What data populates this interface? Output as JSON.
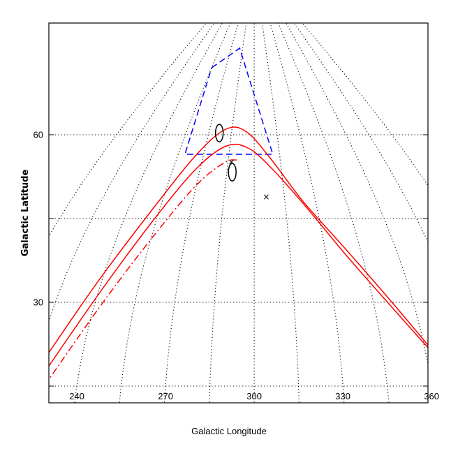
{
  "chart_data": {
    "type": "line",
    "title": "",
    "xlabel": "Galactic Longitude",
    "ylabel": "Galactic Latitude",
    "x_ticks": [
      "240",
      "270",
      "300",
      "330",
      "360"
    ],
    "y_ticks": [
      "60",
      "30"
    ],
    "ylim": [
      12,
      80
    ],
    "grid": true,
    "grid_style": "dotted, curved longitude meridians and straight latitude parallels",
    "parallels": [
      15,
      45
    ],
    "meridians": [
      210,
      225,
      240,
      255,
      270,
      285,
      300,
      315,
      330,
      345,
      360,
      375,
      390
    ],
    "series": [
      {
        "style": "solid",
        "color": "#ff0000",
        "points": [
          [
            221,
            13
          ],
          [
            238,
            33
          ],
          [
            252,
            47
          ],
          [
            266,
            56.5
          ],
          [
            281,
            61
          ],
          [
            295,
            60.5
          ],
          [
            310,
            55.5
          ],
          [
            324,
            48
          ],
          [
            338,
            40
          ],
          [
            352,
            30
          ],
          [
            363,
            21
          ]
        ]
      },
      {
        "style": "solid",
        "color": "#ff0000",
        "points": [
          [
            223,
            12
          ],
          [
            240,
            31
          ],
          [
            254,
            45
          ],
          [
            268,
            54
          ],
          [
            283,
            58
          ],
          [
            297,
            57.5
          ],
          [
            311,
            53.5
          ],
          [
            325,
            47
          ],
          [
            339,
            38
          ],
          [
            353,
            28
          ],
          [
            365,
            19
          ]
        ]
      },
      {
        "style": "dash-dot",
        "color": "#ff0000",
        "points": [
          [
            225,
            11
          ],
          [
            242,
            29
          ],
          [
            256,
            42
          ],
          [
            270,
            51
          ],
          [
            283,
            55
          ],
          [
            290,
            55.5
          ]
        ]
      }
    ],
    "regions": [
      {
        "style": "dashed",
        "color": "#0000ff",
        "corners": [
          [
            255,
            72
          ],
          [
            281,
            75.5
          ],
          [
            311,
            56.5
          ],
          [
            259,
            56.5
          ]
        ]
      }
    ],
    "ellipses": [
      {
        "center": [
          277,
          60.3
        ],
        "color": "#000000"
      },
      {
        "center": [
          288,
          53.3
        ],
        "color": "#000000"
      }
    ],
    "markers": [
      {
        "symbol": "×",
        "at": [
          287,
          55.1
        ],
        "color": "#000000"
      },
      {
        "symbol": "×",
        "at": [
          306,
          48.9
        ],
        "color": "#000000"
      }
    ]
  }
}
